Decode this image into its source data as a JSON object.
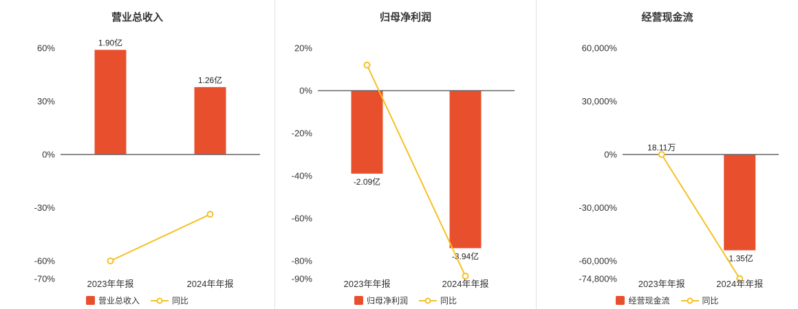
{
  "colors": {
    "bar": "#e8502d",
    "line": "#f6c022",
    "zero_line": "#666666",
    "text": "#333333"
  },
  "chart_data": [
    {
      "type": "bar+line",
      "title": "营业总收入",
      "categories": [
        "2023年年报",
        "2024年年报"
      ],
      "bar_series": {
        "name": "营业总收入",
        "value_labels": [
          "1.90亿",
          "1.26亿"
        ],
        "plot_values": [
          59,
          38
        ]
      },
      "line_series": {
        "name": "同比",
        "values": [
          -60,
          -33.7
        ]
      },
      "y_axis": {
        "ticks": [
          {
            "value": 60,
            "label": "60%"
          },
          {
            "value": 30,
            "label": "30%"
          },
          {
            "value": 0,
            "label": "0%"
          },
          {
            "value": -30,
            "label": "-30%"
          },
          {
            "value": -60,
            "label": "-60%"
          }
        ],
        "bottom_tick": {
          "value": -70,
          "label": "-70%"
        }
      },
      "legend_position": "bottom",
      "grid": false
    },
    {
      "type": "bar+line",
      "title": "归母净利润",
      "categories": [
        "2023年年报",
        "2024年年报"
      ],
      "bar_series": {
        "name": "归母净利润",
        "value_labels": [
          "-2.09亿",
          "-3.94亿"
        ],
        "plot_values": [
          -39,
          -74
        ]
      },
      "line_series": {
        "name": "同比",
        "values": [
          12,
          -88.5
        ]
      },
      "y_axis": {
        "ticks": [
          {
            "value": 20,
            "label": "20%"
          },
          {
            "value": 0,
            "label": "0%"
          },
          {
            "value": -20,
            "label": "-20%"
          },
          {
            "value": -40,
            "label": "-40%"
          },
          {
            "value": -60,
            "label": "-60%"
          },
          {
            "value": -80,
            "label": "-80%"
          }
        ],
        "bottom_tick": {
          "value": -90,
          "label": "-90%"
        }
      },
      "legend_position": "bottom",
      "grid": false
    },
    {
      "type": "bar+line",
      "title": "经营现金流",
      "categories": [
        "2023年年报",
        "2024年年报"
      ],
      "bar_series": {
        "name": "经营现金流",
        "value_labels": [
          "18.11万",
          "-1.35亿"
        ],
        "plot_values": [
          72,
          -54000
        ]
      },
      "line_series": {
        "name": "同比",
        "values": [
          0,
          -74644
        ]
      },
      "y_axis": {
        "ticks": [
          {
            "value": 60000,
            "label": "60,000%"
          },
          {
            "value": 30000,
            "label": "30,000%"
          },
          {
            "value": 0,
            "label": "0%"
          },
          {
            "value": -30000,
            "label": "-30,000%"
          },
          {
            "value": -60000,
            "label": "-60,000%"
          }
        ],
        "bottom_tick": {
          "value": -74800,
          "label": "-74,800%"
        }
      },
      "legend_position": "bottom",
      "grid": false
    }
  ]
}
